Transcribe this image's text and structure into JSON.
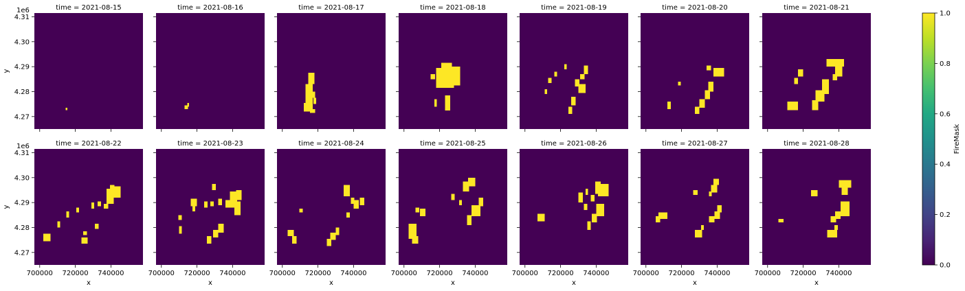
{
  "chart_data": {
    "type": "heatmap",
    "layout": "facet-grid",
    "facet_variable": "time",
    "facet_titles": [
      "time = 2021-08-15",
      "time = 2021-08-16",
      "time = 2021-08-17",
      "time = 2021-08-18",
      "time = 2021-08-19",
      "time = 2021-08-20",
      "time = 2021-08-21",
      "time = 2021-08-22",
      "time = 2021-08-23",
      "time = 2021-08-24",
      "time = 2021-08-25",
      "time = 2021-08-26",
      "time = 2021-08-27",
      "time = 2021-08-28"
    ],
    "xlabel": "x",
    "ylabel": "y",
    "y_offset_label": "1e6",
    "xlim": [
      697000,
      758000
    ],
    "ylim": [
      4265000,
      4311500
    ],
    "xticks": [
      700000,
      720000,
      740000
    ],
    "xtick_labels": [
      "700000",
      "720000",
      "740000"
    ],
    "yticks": [
      4270000,
      4280000,
      4290000,
      4300000,
      4310000
    ],
    "ytick_labels": [
      "4.27",
      "4.28",
      "4.29",
      "4.30",
      "4.31"
    ],
    "colorbar": {
      "label": "FireMask",
      "range": [
        0,
        1
      ],
      "ticks": [
        0,
        0.2,
        0.4,
        0.6,
        0.8,
        1.0
      ],
      "tick_labels": [
        "0.0",
        "0.2",
        "0.4",
        "0.6",
        "0.8",
        "1.0"
      ],
      "colormap": "viridis"
    },
    "colors": {
      "no_fire": "#440154",
      "fire": "#fde725"
    },
    "cell_size": 1000,
    "fire_regions": [
      [
        [
          714500,
          4272500,
          1000,
          1000
        ]
      ],
      [
        [
          713000,
          4273000,
          2000,
          1500
        ],
        [
          714500,
          4274000,
          1000,
          1500
        ]
      ],
      [
        [
          712000,
          4272000,
          5000,
          3500
        ],
        [
          713000,
          4275500,
          4000,
          7500
        ],
        [
          714500,
          4283000,
          3500,
          4500
        ],
        [
          716000,
          4277500,
          2500,
          2500
        ],
        [
          715500,
          4271500,
          3000,
          1500
        ],
        [
          717500,
          4275000,
          1500,
          2500
        ]
      ],
      [
        [
          718000,
          4281500,
          10000,
          8000
        ],
        [
          721000,
          4287500,
          6000,
          4000
        ],
        [
          725500,
          4282500,
          6000,
          7500
        ],
        [
          717000,
          4274000,
          1500,
          3000
        ],
        [
          723000,
          4272500,
          3000,
          6000
        ],
        [
          715000,
          4285000,
          2500,
          2000
        ]
      ],
      [
        [
          733000,
          4287000,
          2500,
          3500
        ],
        [
          730000,
          4279500,
          4000,
          3500
        ],
        [
          731000,
          4285000,
          2500,
          2000
        ],
        [
          728000,
          4282000,
          2500,
          3000
        ],
        [
          726000,
          4274500,
          2500,
          3500
        ],
        [
          724500,
          4271000,
          2000,
          3000
        ],
        [
          713000,
          4283500,
          2000,
          2000
        ],
        [
          711000,
          4279000,
          1500,
          2000
        ],
        [
          716500,
          4286000,
          1500,
          2000
        ],
        [
          722000,
          4289000,
          1500,
          2000
        ]
      ],
      [
        [
          738000,
          4286000,
          6000,
          3500
        ],
        [
          734000,
          4288500,
          2500,
          2000
        ],
        [
          735000,
          4280000,
          3000,
          4000
        ],
        [
          733000,
          4277000,
          3000,
          3500
        ],
        [
          730000,
          4273500,
          3000,
          3500
        ],
        [
          727500,
          4271000,
          2500,
          3000
        ],
        [
          712000,
          4273000,
          2000,
          3000
        ],
        [
          718000,
          4282500,
          1500,
          1500
        ]
      ],
      [
        [
          733000,
          4290000,
          10000,
          3000
        ],
        [
          738000,
          4286000,
          4000,
          4500
        ],
        [
          730500,
          4279000,
          4000,
          6000
        ],
        [
          727000,
          4276000,
          5000,
          4500
        ],
        [
          725000,
          4272500,
          3500,
          4000
        ],
        [
          711000,
          4272500,
          6000,
          3500
        ],
        [
          715000,
          4283000,
          2000,
          2500
        ],
        [
          717000,
          4286000,
          3000,
          3000
        ],
        [
          736500,
          4284500,
          2500,
          2500
        ]
      ],
      [
        [
          737500,
          4289500,
          4000,
          6000
        ],
        [
          741000,
          4292000,
          4500,
          4500
        ],
        [
          739500,
          4292000,
          2500,
          5000
        ],
        [
          736000,
          4287500,
          2500,
          2000
        ],
        [
          732500,
          4288500,
          2000,
          2000
        ],
        [
          729000,
          4287500,
          1500,
          2500
        ],
        [
          731000,
          4279500,
          2000,
          2000
        ],
        [
          723500,
          4273500,
          3500,
          2500
        ],
        [
          724500,
          4277000,
          2000,
          1500
        ],
        [
          702000,
          4274500,
          4000,
          3000
        ],
        [
          710000,
          4280000,
          1500,
          2500
        ],
        [
          715000,
          4284000,
          1500,
          2500
        ],
        [
          720500,
          4286000,
          1500,
          2000
        ]
      ],
      [
        [
          738500,
          4288000,
          4000,
          6500
        ],
        [
          741000,
          4285000,
          3500,
          5500
        ],
        [
          742000,
          4291000,
          3000,
          4000
        ],
        [
          736000,
          4288000,
          2500,
          3000
        ],
        [
          732000,
          4289000,
          2000,
          2500
        ],
        [
          728500,
          4295000,
          2000,
          2500
        ],
        [
          724000,
          4288000,
          2000,
          2500
        ],
        [
          727500,
          4288500,
          2000,
          2000
        ],
        [
          732000,
          4278000,
          3000,
          3500
        ],
        [
          729000,
          4276000,
          3000,
          3000
        ],
        [
          725500,
          4273500,
          2500,
          3000
        ],
        [
          716500,
          4288500,
          3500,
          3000
        ],
        [
          717500,
          4286500,
          1500,
          2000
        ],
        [
          709500,
          4283000,
          2000,
          2000
        ],
        [
          710000,
          4277500,
          1500,
          3000
        ]
      ],
      [
        [
          740000,
          4287500,
          3000,
          3500
        ],
        [
          743500,
          4289000,
          2500,
          3000
        ],
        [
          738500,
          4289500,
          2000,
          2500
        ],
        [
          734500,
          4292500,
          3500,
          4500
        ],
        [
          736000,
          4284000,
          2000,
          2000
        ],
        [
          730000,
          4277000,
          2000,
          3000
        ],
        [
          727000,
          4275000,
          3000,
          3000
        ],
        [
          725000,
          4272500,
          2500,
          3000
        ],
        [
          703000,
          4276500,
          3500,
          2500
        ],
        [
          705500,
          4273500,
          2500,
          3000
        ],
        [
          709500,
          4286000,
          2000,
          1500
        ]
      ],
      [
        [
          733000,
          4294500,
          3500,
          4000
        ],
        [
          736000,
          4296500,
          4000,
          3500
        ],
        [
          738000,
          4284500,
          5000,
          4500
        ],
        [
          742000,
          4288500,
          2500,
          3500
        ],
        [
          740000,
          4286000,
          2500,
          3000
        ],
        [
          735500,
          4281000,
          2500,
          4000
        ],
        [
          726500,
          4291000,
          2000,
          2500
        ],
        [
          731000,
          4289000,
          1500,
          2000
        ],
        [
          709000,
          4284500,
          3000,
          3000
        ],
        [
          706500,
          4286000,
          2000,
          2000
        ],
        [
          702500,
          4275500,
          4500,
          6000
        ],
        [
          704500,
          4273500,
          3500,
          3000
        ]
      ],
      [
        [
          741000,
          4292500,
          6000,
          5000
        ],
        [
          739500,
          4293500,
          3000,
          5000
        ],
        [
          734000,
          4293000,
          1500,
          2500
        ],
        [
          737000,
          4290500,
          2000,
          2500
        ],
        [
          740000,
          4284500,
          4500,
          5000
        ],
        [
          737500,
          4282000,
          3000,
          3500
        ],
        [
          735000,
          4279000,
          2000,
          3500
        ],
        [
          730000,
          4290000,
          2500,
          4000
        ],
        [
          733000,
          4287000,
          2000,
          2500
        ],
        [
          707000,
          4282500,
          4000,
          3000
        ]
      ],
      [
        [
          738000,
          4297000,
          3000,
          2500
        ],
        [
          736500,
          4294000,
          3500,
          3000
        ],
        [
          735500,
          4292500,
          1500,
          2000
        ],
        [
          740000,
          4286000,
          2500,
          3000
        ],
        [
          738500,
          4283500,
          3000,
          3000
        ],
        [
          735500,
          4282000,
          3000,
          2500
        ],
        [
          726500,
          4293000,
          2500,
          2000
        ],
        [
          727500,
          4276000,
          4000,
          3000
        ],
        [
          731000,
          4279000,
          1500,
          2000
        ],
        [
          707000,
          4283500,
          5000,
          2500
        ],
        [
          705500,
          4282000,
          2500,
          2500
        ]
      ],
      [
        [
          740000,
          4296000,
          7000,
          3000
        ],
        [
          741500,
          4293000,
          3500,
          3500
        ],
        [
          741000,
          4284500,
          5000,
          6000
        ],
        [
          743000,
          4287000,
          3000,
          3500
        ],
        [
          738000,
          4283500,
          3000,
          3000
        ],
        [
          735500,
          4282000,
          3000,
          2500
        ],
        [
          737500,
          4279000,
          2000,
          2000
        ],
        [
          733500,
          4276000,
          5500,
          3000
        ],
        [
          724500,
          4292500,
          3500,
          2500
        ],
        [
          706000,
          4282000,
          3000,
          1500
        ]
      ]
    ]
  }
}
